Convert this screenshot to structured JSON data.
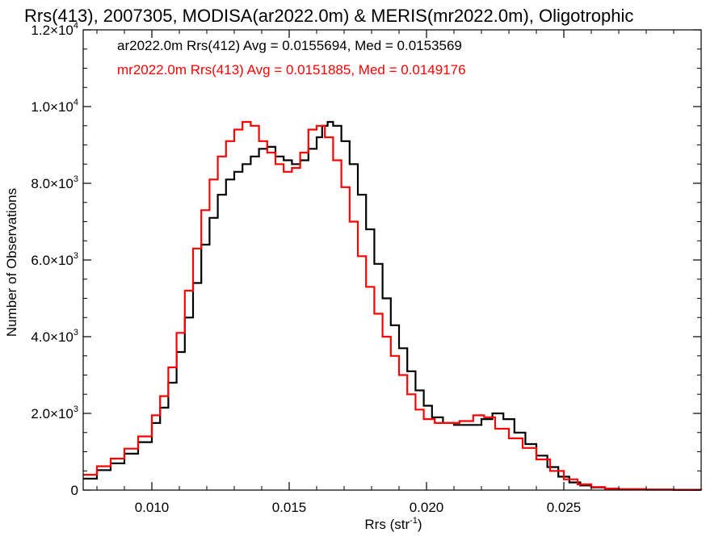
{
  "chart_data": {
    "type": "line",
    "title": "Rrs(413), 2007305, MODISA(ar2022.0m) & MERIS(mr2022.0m), Oligotrophic",
    "xlabel": "Rrs (str",
    "xlabel_sup": "-1",
    "xlabel_end": ")",
    "ylabel": "Number of Observations",
    "xlim": [
      0.0075,
      0.03
    ],
    "ylim": [
      0,
      12000
    ],
    "x_ticks": [
      {
        "value": 0.01,
        "label": "0.010"
      },
      {
        "value": 0.015,
        "label": "0.015"
      },
      {
        "value": 0.02,
        "label": "0.020"
      },
      {
        "value": 0.025,
        "label": "0.025"
      }
    ],
    "y_ticks": [
      {
        "value": 0,
        "mant": "0",
        "exp": ""
      },
      {
        "value": 2000,
        "mant": "2.0×10",
        "exp": "3"
      },
      {
        "value": 4000,
        "mant": "4.0×10",
        "exp": "3"
      },
      {
        "value": 6000,
        "mant": "6.0×10",
        "exp": "3"
      },
      {
        "value": 8000,
        "mant": "8.0×10",
        "exp": "3"
      },
      {
        "value": 10000,
        "mant": "1.0×10",
        "exp": "4"
      },
      {
        "value": 12000,
        "mant": "1.2×10",
        "exp": "4"
      }
    ],
    "legend_placement": "top-left",
    "series": [
      {
        "name": "ar2022.0m Rrs(412) Avg = 0.0155694, Med = 0.0153569",
        "color": "#000000",
        "points": [
          [
            0.0075,
            300
          ],
          [
            0.008,
            520
          ],
          [
            0.0085,
            700
          ],
          [
            0.009,
            950
          ],
          [
            0.0095,
            1250
          ],
          [
            0.01,
            1750
          ],
          [
            0.0103,
            2150
          ],
          [
            0.0106,
            2800
          ],
          [
            0.0109,
            3600
          ],
          [
            0.0112,
            4500
          ],
          [
            0.0115,
            5400
          ],
          [
            0.0118,
            6400
          ],
          [
            0.0121,
            7100
          ],
          [
            0.0124,
            7700
          ],
          [
            0.0127,
            8100
          ],
          [
            0.013,
            8300
          ],
          [
            0.0133,
            8500
          ],
          [
            0.0136,
            8700
          ],
          [
            0.0139,
            8900
          ],
          [
            0.0142,
            8950
          ],
          [
            0.0145,
            8700
          ],
          [
            0.0148,
            8600
          ],
          [
            0.0151,
            8500
          ],
          [
            0.0154,
            8600
          ],
          [
            0.0157,
            8900
          ],
          [
            0.016,
            9200
          ],
          [
            0.0162,
            9500
          ],
          [
            0.0164,
            9600
          ],
          [
            0.0166,
            9500
          ],
          [
            0.0169,
            9100
          ],
          [
            0.0172,
            8500
          ],
          [
            0.0175,
            7700
          ],
          [
            0.0178,
            6800
          ],
          [
            0.0181,
            5900
          ],
          [
            0.0184,
            5000
          ],
          [
            0.0187,
            4300
          ],
          [
            0.019,
            3700
          ],
          [
            0.0193,
            3100
          ],
          [
            0.0196,
            2600
          ],
          [
            0.0199,
            2200
          ],
          [
            0.0202,
            1900
          ],
          [
            0.0206,
            1750
          ],
          [
            0.021,
            1700
          ],
          [
            0.0215,
            1700
          ],
          [
            0.022,
            1850
          ],
          [
            0.0224,
            2000
          ],
          [
            0.0228,
            1850
          ],
          [
            0.0232,
            1500
          ],
          [
            0.0236,
            1200
          ],
          [
            0.024,
            900
          ],
          [
            0.0244,
            600
          ],
          [
            0.0248,
            350
          ],
          [
            0.0252,
            200
          ],
          [
            0.0256,
            120
          ],
          [
            0.026,
            70
          ],
          [
            0.0265,
            40
          ],
          [
            0.027,
            25
          ],
          [
            0.028,
            15
          ],
          [
            0.029,
            8
          ],
          [
            0.03,
            5
          ]
        ]
      },
      {
        "name": "mr2022.0m Rrs(413) Avg = 0.0151885, Med = 0.0149176",
        "color": "#ff0000",
        "points": [
          [
            0.0075,
            400
          ],
          [
            0.008,
            620
          ],
          [
            0.0085,
            820
          ],
          [
            0.009,
            1080
          ],
          [
            0.0095,
            1400
          ],
          [
            0.01,
            1950
          ],
          [
            0.0103,
            2450
          ],
          [
            0.0106,
            3200
          ],
          [
            0.0109,
            4100
          ],
          [
            0.0112,
            5200
          ],
          [
            0.0115,
            6300
          ],
          [
            0.0118,
            7300
          ],
          [
            0.0121,
            8100
          ],
          [
            0.0124,
            8700
          ],
          [
            0.0127,
            9100
          ],
          [
            0.013,
            9400
          ],
          [
            0.0133,
            9600
          ],
          [
            0.0136,
            9500
          ],
          [
            0.0139,
            9100
          ],
          [
            0.0142,
            8800
          ],
          [
            0.0145,
            8500
          ],
          [
            0.0148,
            8300
          ],
          [
            0.0151,
            8400
          ],
          [
            0.0154,
            8800
          ],
          [
            0.0157,
            9400
          ],
          [
            0.016,
            9500
          ],
          [
            0.0163,
            9200
          ],
          [
            0.0166,
            8600
          ],
          [
            0.0169,
            7900
          ],
          [
            0.0172,
            7000
          ],
          [
            0.0175,
            6100
          ],
          [
            0.0178,
            5300
          ],
          [
            0.0181,
            4600
          ],
          [
            0.0184,
            4000
          ],
          [
            0.0187,
            3500
          ],
          [
            0.019,
            3000
          ],
          [
            0.0193,
            2500
          ],
          [
            0.0196,
            2100
          ],
          [
            0.0199,
            1850
          ],
          [
            0.0203,
            1750
          ],
          [
            0.0207,
            1750
          ],
          [
            0.0212,
            1800
          ],
          [
            0.0217,
            1950
          ],
          [
            0.0221,
            1900
          ],
          [
            0.0225,
            1600
          ],
          [
            0.023,
            1350
          ],
          [
            0.0235,
            1100
          ],
          [
            0.024,
            800
          ],
          [
            0.0245,
            500
          ],
          [
            0.025,
            280
          ],
          [
            0.0255,
            150
          ],
          [
            0.026,
            80
          ],
          [
            0.0265,
            40
          ],
          [
            0.027,
            20
          ],
          [
            0.028,
            10
          ],
          [
            0.029,
            5
          ],
          [
            0.03,
            3
          ]
        ]
      }
    ]
  }
}
